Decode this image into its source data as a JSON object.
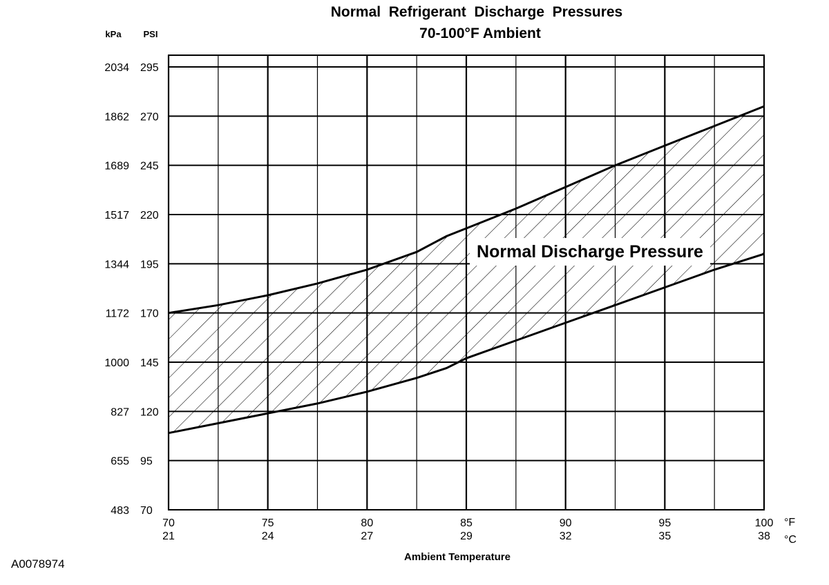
{
  "chart_data": {
    "type": "area",
    "title": "Normal  Refrigerant  Discharge  Pressures",
    "subtitle": "70-100°F Ambient",
    "xlabel": "Ambient Temperature",
    "x_unit_primary": "°F",
    "x_unit_secondary": "°C",
    "y_unit_primary": "PSI",
    "y_unit_secondary": "kPa",
    "xlim": [
      70,
      100
    ],
    "ylim": [
      70,
      302
    ],
    "grid": true,
    "x_ticks": [
      {
        "f": "70",
        "c": "21"
      },
      {
        "f": "75",
        "c": "24"
      },
      {
        "f": "80",
        "c": "27"
      },
      {
        "f": "85",
        "c": "29"
      },
      {
        "f": "90",
        "c": "32"
      },
      {
        "f": "95",
        "c": "35"
      },
      {
        "f": "100",
        "c": "38"
      }
    ],
    "y_ticks": [
      {
        "psi": "70",
        "kpa": "483"
      },
      {
        "psi": "95",
        "kpa": "655"
      },
      {
        "psi": "120",
        "kpa": "827"
      },
      {
        "psi": "145",
        "kpa": "1000"
      },
      {
        "psi": "170",
        "kpa": "1172"
      },
      {
        "psi": "195",
        "kpa": "1344"
      },
      {
        "psi": "220",
        "kpa": "1517"
      },
      {
        "psi": "245",
        "kpa": "1689"
      },
      {
        "psi": "270",
        "kpa": "1862"
      },
      {
        "psi": "295",
        "kpa": "2034"
      }
    ],
    "band_label": "Normal Discharge Pressure",
    "series": [
      {
        "x": [
          70,
          72.5,
          75,
          77.5,
          80,
          82.5,
          84,
          85,
          87.5,
          90,
          92.5,
          95,
          97.5,
          100
        ],
        "values": [
          170,
          174,
          179,
          185,
          192,
          201,
          209,
          213,
          223,
          234,
          245,
          255,
          265,
          275
        ]
      },
      {
        "x": [
          70,
          72.5,
          75,
          77.5,
          80,
          82.5,
          84,
          85,
          87.5,
          90,
          92.5,
          95,
          97.5,
          100
        ],
        "values": [
          109,
          114,
          119,
          124,
          130,
          137,
          142,
          147,
          156,
          165,
          174,
          183,
          192,
          200
        ]
      }
    ]
  },
  "figure_id": "A0078974"
}
